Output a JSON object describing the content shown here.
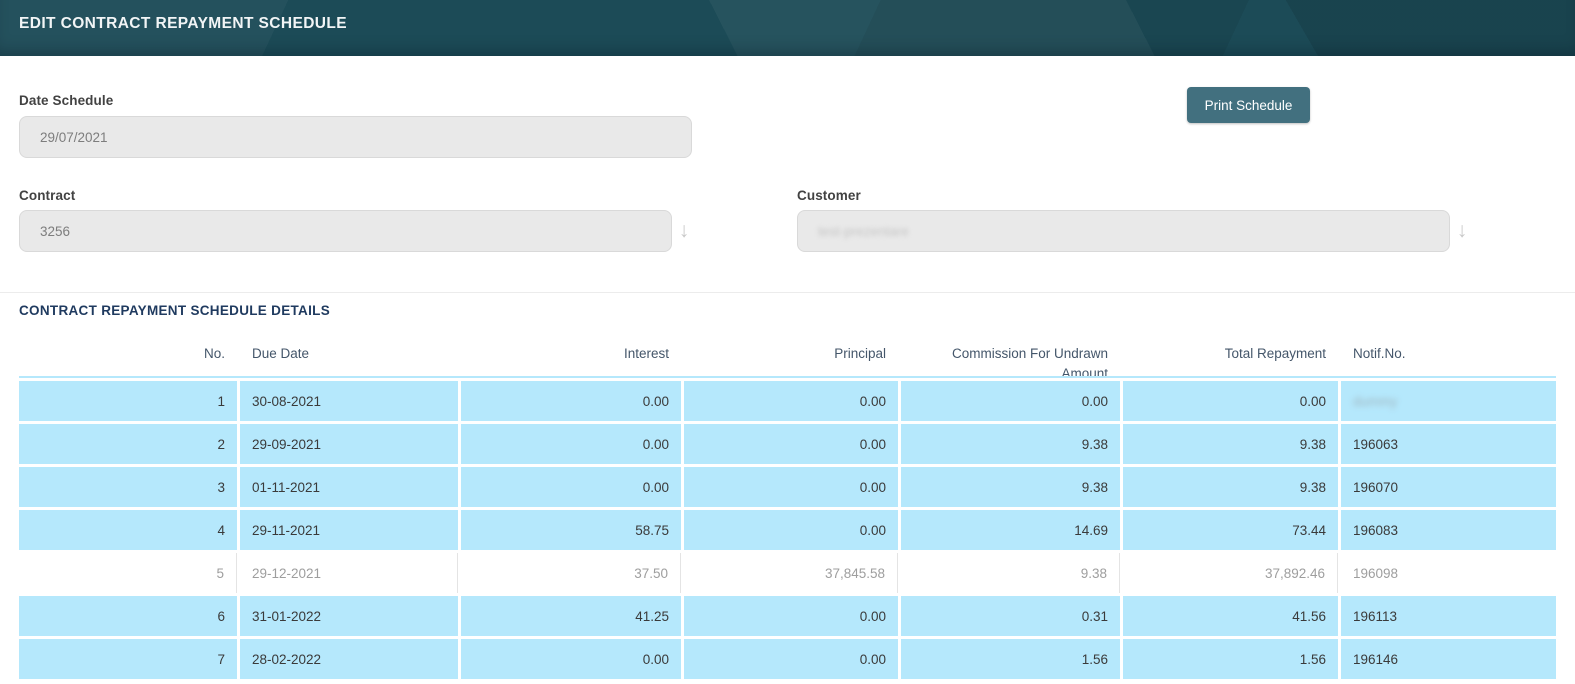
{
  "header": {
    "title": "EDIT CONTRACT REPAYMENT SCHEDULE"
  },
  "form": {
    "date_schedule": {
      "label": "Date Schedule",
      "value": "29/07/2021"
    },
    "print_button_label": "Print Schedule",
    "contract": {
      "label": "Contract",
      "value": "3256",
      "dropdown_icon": "down-arrow"
    },
    "customer": {
      "label": "Customer",
      "value": "test-prezentare",
      "value_blurred": true,
      "dropdown_icon": "down-arrow"
    }
  },
  "details": {
    "title": "CONTRACT REPAYMENT SCHEDULE DETAILS",
    "columns": [
      {
        "key": "no",
        "label": "No.",
        "align": "right"
      },
      {
        "key": "due-date",
        "label": "Due Date",
        "align": "left"
      },
      {
        "key": "interest",
        "label": "Interest",
        "align": "right"
      },
      {
        "key": "principal",
        "label": "Principal",
        "align": "right"
      },
      {
        "key": "commission",
        "label": "Commission For Undrawn Amount",
        "align": "right"
      },
      {
        "key": "total-repayment",
        "label": "Total Repayment",
        "align": "right"
      },
      {
        "key": "notif-no",
        "label": "Notif.No.",
        "align": "left"
      }
    ],
    "rows": [
      {
        "cells": [
          "1",
          "30-08-2021",
          "0.00",
          "0.00",
          "0.00",
          "0.00",
          "dummy"
        ],
        "shaded": true,
        "last_cell_blurred": true
      },
      {
        "cells": [
          "2",
          "29-09-2021",
          "0.00",
          "0.00",
          "9.38",
          "9.38",
          "196063"
        ],
        "shaded": true,
        "last_cell_blurred": false
      },
      {
        "cells": [
          "3",
          "01-11-2021",
          "0.00",
          "0.00",
          "9.38",
          "9.38",
          "196070"
        ],
        "shaded": true,
        "last_cell_blurred": false
      },
      {
        "cells": [
          "4",
          "29-11-2021",
          "58.75",
          "0.00",
          "14.69",
          "73.44",
          "196083"
        ],
        "shaded": true,
        "last_cell_blurred": false
      },
      {
        "cells": [
          "5",
          "29-12-2021",
          "37.50",
          "37,845.58",
          "9.38",
          "37,892.46",
          "196098"
        ],
        "shaded": false,
        "last_cell_blurred": false
      },
      {
        "cells": [
          "6",
          "31-01-2022",
          "41.25",
          "0.00",
          "0.31",
          "41.56",
          "196113"
        ],
        "shaded": true,
        "last_cell_blurred": false
      },
      {
        "cells": [
          "7",
          "28-02-2022",
          "0.00",
          "0.00",
          "1.56",
          "1.56",
          "196146"
        ],
        "shaded": true,
        "last_cell_blurred": false
      }
    ]
  },
  "colors": {
    "topbar_bg": "#1c4b57",
    "button_bg": "#42707f",
    "row_highlight": "#b5e8fc",
    "input_bg": "#e9e9e9",
    "section_title_text": "#1f3a5f",
    "table_header_text": "#44566a"
  }
}
